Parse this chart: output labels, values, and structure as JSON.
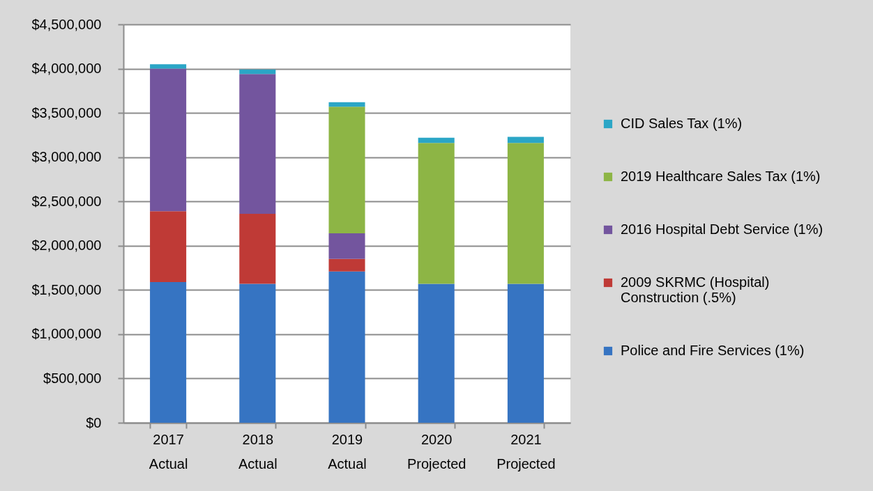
{
  "chart_data": {
    "type": "bar",
    "stacked": true,
    "categories": [
      "2017 Actual",
      "2018 Actual",
      "2019 Actual",
      "2020 Projected",
      "2021 Projected"
    ],
    "series": [
      {
        "name": "Police and Fire Services (1%)",
        "color": "#3674c2",
        "values": [
          1590000,
          1570000,
          1710000,
          1570000,
          1570000
        ]
      },
      {
        "name": "2009 SKRMC (Hospital) Construction (.5%)",
        "color": "#bf3a36",
        "values": [
          800000,
          790000,
          140000,
          null,
          null
        ]
      },
      {
        "name": "2016 Hospital Debt Service (1%)",
        "color": "#73559e",
        "values": [
          1610000,
          1580000,
          290000,
          null,
          null
        ]
      },
      {
        "name": "2019 Healthcare Sales Tax (1%)",
        "color": "#8db545",
        "values": [
          null,
          null,
          1430000,
          1590000,
          1590000
        ]
      },
      {
        "name": "CID Sales Tax (1%)",
        "color": "#2ba6c6",
        "values": [
          50000,
          50000,
          50000,
          60000,
          70000
        ]
      }
    ],
    "ylim": [
      0,
      4500000
    ],
    "yticks": [
      {
        "value": 0,
        "label": "$0"
      },
      {
        "value": 500000,
        "label": "$500,000"
      },
      {
        "value": 1000000,
        "label": "$1,000,000"
      },
      {
        "value": 1500000,
        "label": "$1,500,000"
      },
      {
        "value": 2000000,
        "label": "$2,000,000"
      },
      {
        "value": 2500000,
        "label": "$2,500,000"
      },
      {
        "value": 3000000,
        "label": "$3,000,000"
      },
      {
        "value": 3500000,
        "label": "$3,500,000"
      },
      {
        "value": 4000000,
        "label": "$4,000,000"
      },
      {
        "value": 4500000,
        "label": "$4,500,000"
      }
    ],
    "grid": "y",
    "legend": "right"
  }
}
